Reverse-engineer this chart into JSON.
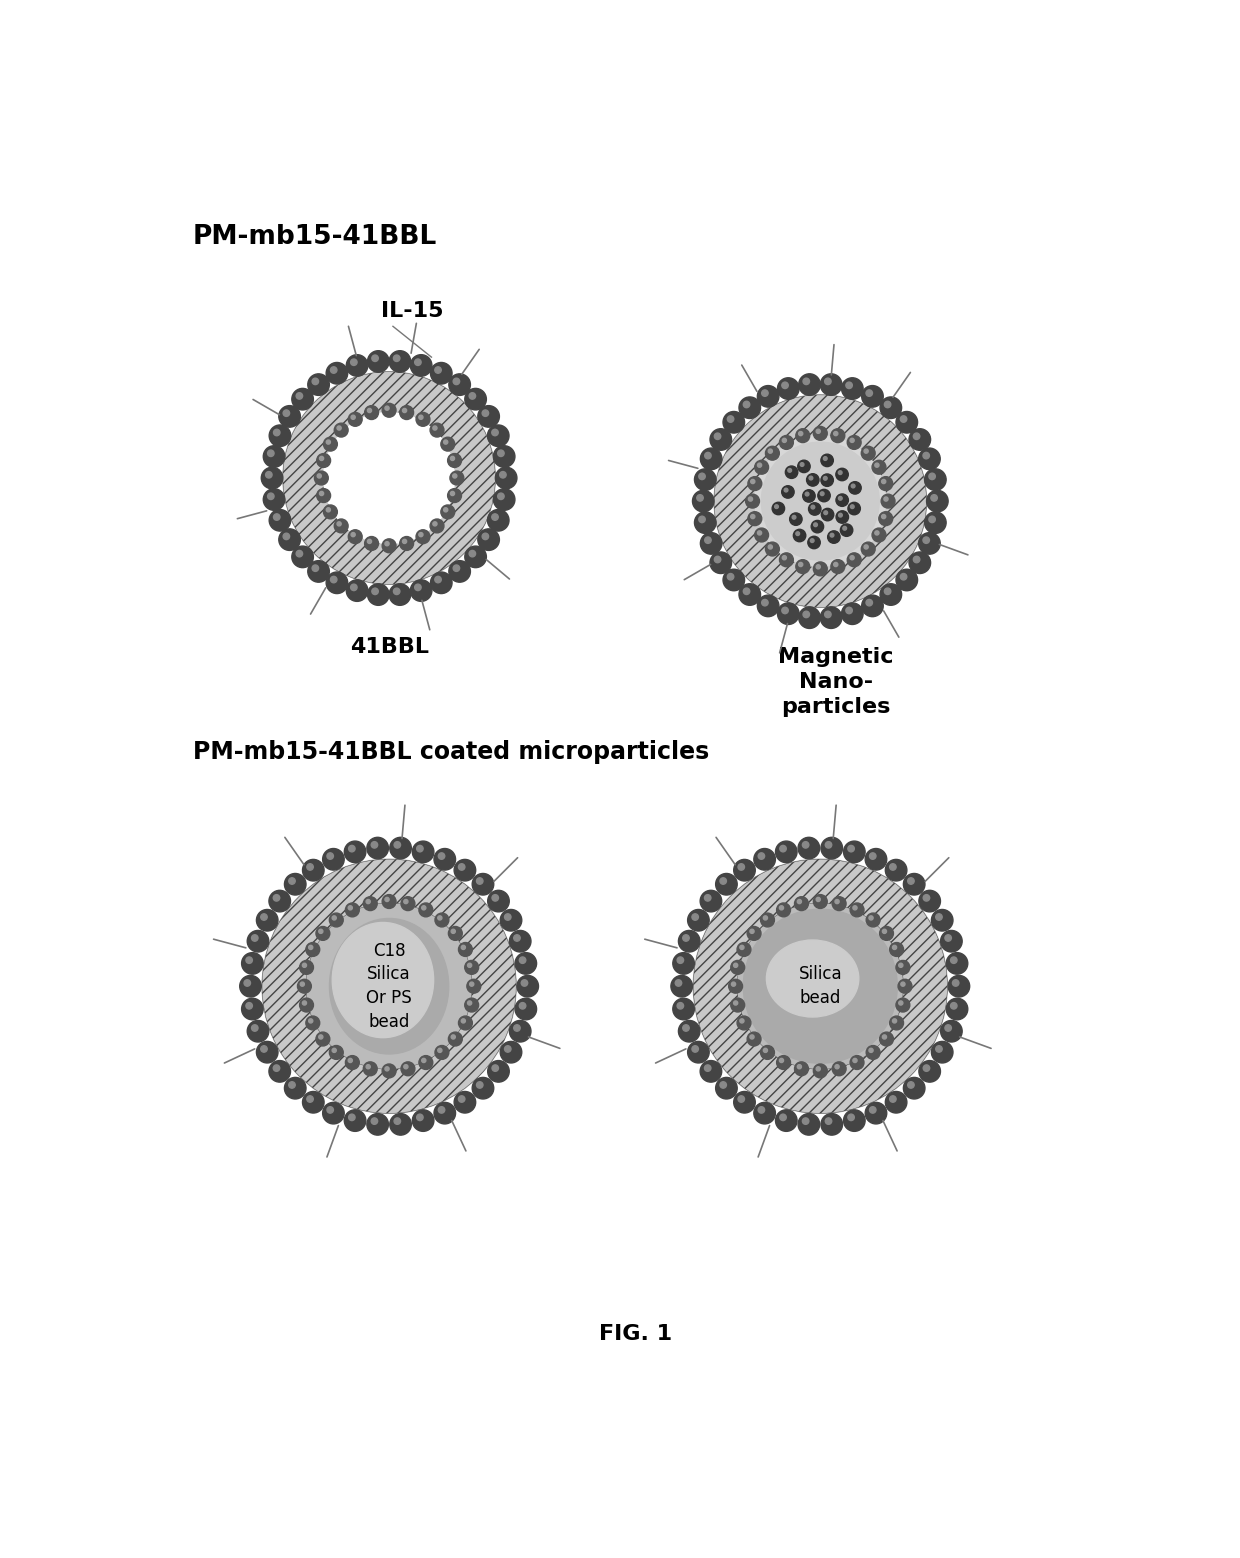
{
  "bg_color": "#ffffff",
  "title_top": "PM-mb15-41BBL",
  "label_IL15": "IL-15",
  "label_41BBL": "41BBL",
  "label_magnetic": "Magnetic\nNano-\nparticles",
  "label_coated": "PM-mb15-41BBL coated microparticles",
  "label_c18": "C18\nSilica\nOr PS\nbead",
  "label_silica": "Silica\nbead",
  "label_fig": "FIG. 1",
  "membrane_hatch_color": "#555555",
  "membrane_fill_color": "#cccccc",
  "membrane_dark_color": "#777777",
  "bead_color": "#555555",
  "bead_highlight": "#999999",
  "nano_color": "#333333",
  "core_gray": "#aaaaaa",
  "core_light": "#cccccc",
  "spike_color": "#888888"
}
